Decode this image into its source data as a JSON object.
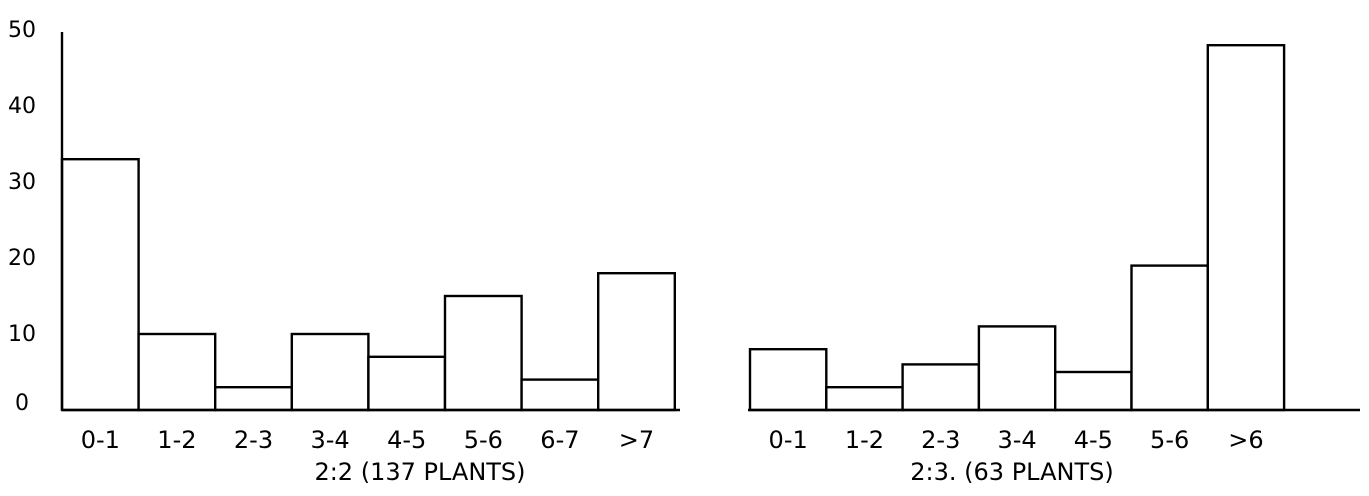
{
  "chart_data": [
    {
      "type": "bar",
      "caption": "2:2 (137 PLANTS)",
      "categories": [
        "0-1",
        "1-2",
        "2-3",
        "3-4",
        "4-5",
        "5-6",
        "6-7",
        ">7"
      ],
      "values": [
        33,
        10,
        3,
        10,
        7,
        15,
        4,
        18
      ],
      "ylim": [
        0,
        50
      ],
      "yticks": [
        "0",
        "10",
        "20",
        "30",
        "40",
        "50"
      ],
      "xlabel": "",
      "ylabel": "",
      "grid": false
    },
    {
      "type": "bar",
      "caption": "2:3. (63 PLANTS)",
      "categories": [
        "0-1",
        "1-2",
        "2-3",
        "3-4",
        "4-5",
        "5-6",
        ">6"
      ],
      "values": [
        8,
        3,
        6,
        11,
        5,
        19,
        48
      ],
      "ylim": [
        0,
        50
      ],
      "yticks": [],
      "xlabel": "",
      "ylabel": "",
      "grid": false
    }
  ]
}
